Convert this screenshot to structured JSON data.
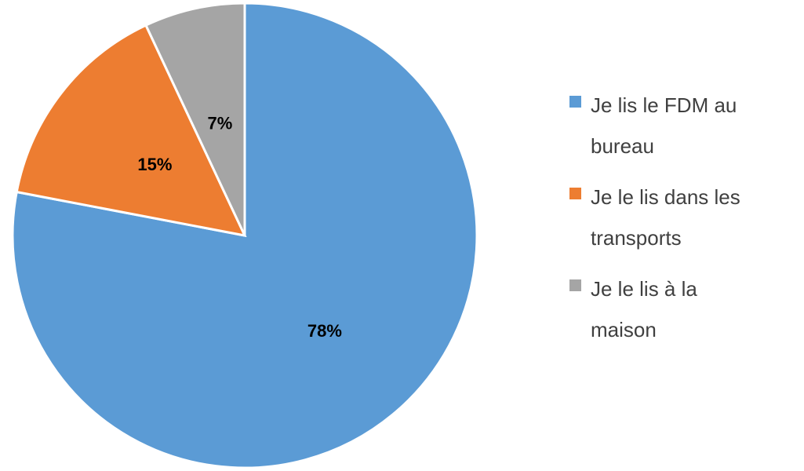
{
  "chart_data": {
    "type": "pie",
    "categories": [
      "Je lis le FDM au bureau",
      "Je le lis dans les transports",
      "Je le lis à la maison"
    ],
    "values": [
      78,
      15,
      7
    ],
    "value_labels": [
      "78%",
      "15%",
      "7%"
    ],
    "colors": [
      "#5b9bd5",
      "#ed7d31",
      "#a5a5a5"
    ],
    "legend": "right"
  }
}
